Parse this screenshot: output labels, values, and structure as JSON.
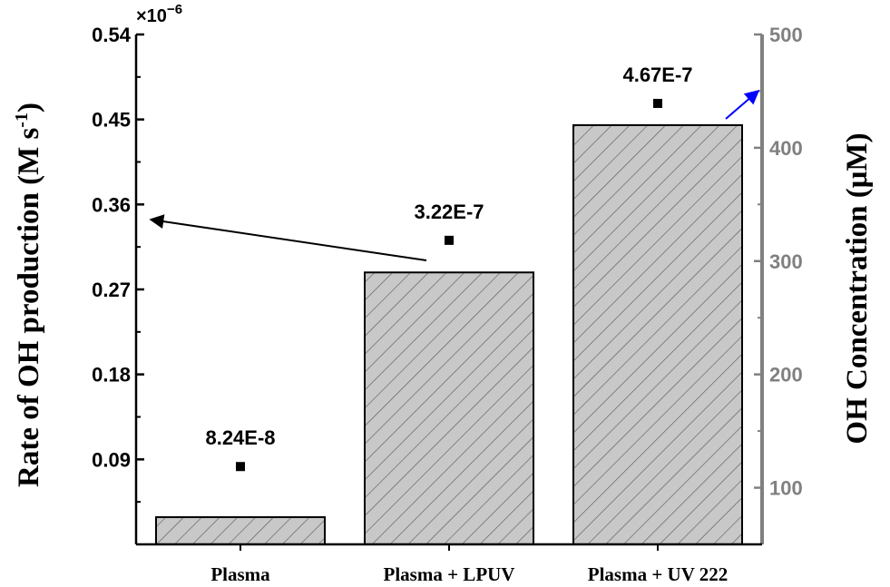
{
  "chart_data": {
    "type": "bar",
    "categories": [
      "Plasma",
      "Plasma + LPUV",
      "Plasma + UV 222"
    ],
    "left_axis": {
      "label": "Rate of OH production (M s",
      "label_sup": "-1",
      "label_end": ")",
      "multiplier": "×10",
      "multiplier_exp": "−6",
      "range": [
        0,
        0.54
      ],
      "ticks": [
        "0.09",
        "0.18",
        "0.27",
        "0.36",
        "0.45",
        "0.54"
      ],
      "tick_values": [
        0.09,
        0.18,
        0.27,
        0.36,
        0.45,
        0.54
      ],
      "color": "#000000"
    },
    "right_axis": {
      "label": "OH Concentration (μM)",
      "range": [
        50,
        500
      ],
      "ticks": [
        "100",
        "200",
        "300",
        "400",
        "500"
      ],
      "tick_values": [
        100,
        200,
        300,
        400,
        500
      ],
      "color": "#808080"
    },
    "bars": {
      "axis": "right",
      "values": [
        74,
        290,
        420
      ],
      "fill": "#c8c8c8",
      "pattern": "diagonal-hatch"
    },
    "points": {
      "axis": "left",
      "values": [
        0.0824,
        0.322,
        0.467
      ],
      "labels": [
        "8.24E-8",
        "3.22E-7",
        "4.67E-7"
      ]
    },
    "annotations": [
      {
        "type": "arrow",
        "points_to": "left-axis",
        "color": "#000000"
      },
      {
        "type": "arrow",
        "points_to": "right-axis",
        "color": "#0000ff"
      }
    ]
  }
}
